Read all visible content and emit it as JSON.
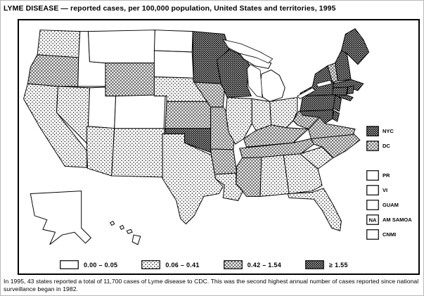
{
  "title": "LYME DISEASE — reported cases, per 100,000 population, United States and territories, 1995",
  "caption": "In 1995, 43 states reported a total of 11,700 cases of Lyme disease to CDC. This was the second highest annual number of cases reported since national surveillance began in 1982.",
  "colors": {
    "ink": "#000000",
    "paper": "#ffffff"
  },
  "legend": {
    "classes": [
      {
        "label": "0.00 – 0.05",
        "pattern": "open"
      },
      {
        "label": "0.06 – 0.41",
        "pattern": "dots"
      },
      {
        "label": "0.42 – 1.54",
        "pattern": "hatch"
      },
      {
        "label": "≥ 1.55",
        "pattern": "dense"
      }
    ],
    "areas": [
      {
        "label": "NYC",
        "pattern": "dense",
        "value": ""
      },
      {
        "label": "DC",
        "pattern": "hatch",
        "value": ""
      },
      {
        "label": "PR",
        "pattern": "open",
        "value": ""
      },
      {
        "label": "VI",
        "pattern": "open",
        "value": ""
      },
      {
        "label": "GUAM",
        "pattern": "open",
        "value": ""
      },
      {
        "label": "AM SAMOA",
        "pattern": "open",
        "value": "NA"
      },
      {
        "label": "CNMI",
        "pattern": "open",
        "value": ""
      }
    ]
  },
  "chart_data": {
    "type": "choropleth",
    "title": "LYME DISEASE — reported cases, per 100,000 population, United States and territories, 1995",
    "unit": "reported cases per 100,000 population",
    "year": 1995,
    "total_cases": 11700,
    "states_reporting": 43,
    "classes": [
      {
        "range": "0.00 – 0.05",
        "pattern": "open",
        "regions": [
          "AK",
          "HI",
          "ID",
          "MT",
          "ND",
          "SD",
          "UT",
          "CO",
          "MI",
          "PR",
          "VI",
          "GUAM",
          "CNMI"
        ]
      },
      {
        "range": "0.06 – 0.41",
        "pattern": "dots",
        "regions": [
          "WA",
          "CA",
          "NV",
          "AZ",
          "NM",
          "NE",
          "TX",
          "LA",
          "IL",
          "IN",
          "OH",
          "SC",
          "GA",
          "AL",
          "FL"
        ]
      },
      {
        "range": "0.42 – 1.54",
        "pattern": "hatch",
        "regions": [
          "OR",
          "WY",
          "KS",
          "IA",
          "MO",
          "AR",
          "MS",
          "TN",
          "KY",
          "WV",
          "VA",
          "NC",
          "VT",
          "DC"
        ]
      },
      {
        "range": "≥ 1.55",
        "pattern": "dense",
        "regions": [
          "MN",
          "WI",
          "OK",
          "NY",
          "PA",
          "NJ",
          "DE",
          "MD",
          "CT",
          "RI",
          "MA",
          "NH",
          "ME",
          "NYC"
        ]
      }
    ],
    "not_available": [
      "AM SAMOA"
    ]
  }
}
